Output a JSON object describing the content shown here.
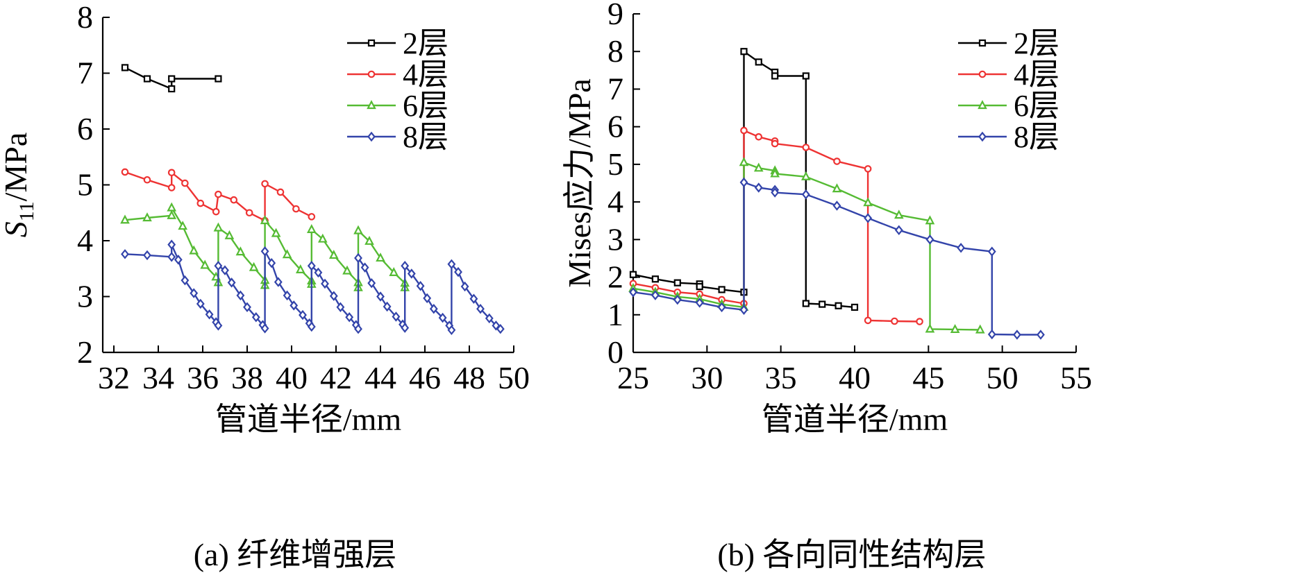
{
  "chart_data": [
    {
      "panel": "a",
      "type": "line",
      "caption": "(a) 纤维增强层",
      "xlabel": "管道半径/mm",
      "ylabel": "S11/MPa",
      "ylabel_main": "S",
      "ylabel_sub": "11",
      "ylabel_unit": "/MPa",
      "xlim": [
        31.5,
        50
      ],
      "ylim": [
        2,
        8
      ],
      "xticks": [
        32,
        34,
        36,
        38,
        40,
        42,
        44,
        46,
        48,
        50
      ],
      "yticks": [
        2,
        3,
        4,
        5,
        6,
        7,
        8
      ],
      "legend_position": "top-right",
      "series": [
        {
          "name": "2层",
          "color": "#000000",
          "marker": "square",
          "points": [
            [
              32.5,
              7.1
            ],
            [
              33.5,
              6.9
            ],
            [
              34.6,
              6.72
            ],
            [
              34.6,
              6.9
            ],
            [
              36.7,
              6.9
            ]
          ]
        },
        {
          "name": "4层",
          "color": "#ee3333",
          "marker": "circle",
          "points": [
            [
              32.5,
              5.23
            ],
            [
              33.5,
              5.09
            ],
            [
              34.6,
              4.95
            ],
            [
              34.6,
              5.22
            ],
            [
              35.2,
              5.03
            ],
            [
              35.9,
              4.67
            ],
            [
              36.6,
              4.52
            ],
            [
              36.7,
              4.83
            ],
            [
              37.4,
              4.73
            ],
            [
              38.1,
              4.5
            ],
            [
              38.8,
              4.36
            ],
            [
              38.8,
              5.02
            ],
            [
              39.5,
              4.87
            ],
            [
              40.2,
              4.57
            ],
            [
              40.9,
              4.43
            ]
          ]
        },
        {
          "name": "6层",
          "color": "#55bb33",
          "marker": "triangle",
          "points": [
            [
              32.5,
              4.37
            ],
            [
              33.5,
              4.41
            ],
            [
              34.6,
              4.45
            ],
            [
              34.6,
              4.59
            ],
            [
              35.1,
              4.26
            ],
            [
              35.6,
              3.82
            ],
            [
              36.1,
              3.56
            ],
            [
              36.6,
              3.35
            ],
            [
              36.7,
              3.25
            ],
            [
              36.7,
              4.23
            ],
            [
              37.2,
              4.09
            ],
            [
              37.7,
              3.8
            ],
            [
              38.3,
              3.52
            ],
            [
              38.8,
              3.29
            ],
            [
              38.8,
              3.2
            ],
            [
              38.8,
              4.36
            ],
            [
              39.3,
              4.13
            ],
            [
              39.8,
              3.75
            ],
            [
              40.4,
              3.48
            ],
            [
              40.9,
              3.28
            ],
            [
              40.9,
              3.22
            ],
            [
              40.9,
              4.2
            ],
            [
              41.4,
              4.03
            ],
            [
              41.9,
              3.74
            ],
            [
              42.5,
              3.46
            ],
            [
              43.0,
              3.25
            ],
            [
              43.0,
              3.16
            ],
            [
              43.0,
              4.18
            ],
            [
              43.5,
              3.99
            ],
            [
              44.0,
              3.69
            ],
            [
              44.6,
              3.43
            ],
            [
              45.1,
              3.24
            ],
            [
              45.1,
              3.16
            ]
          ]
        },
        {
          "name": "8层",
          "color": "#3344aa",
          "marker": "diamond",
          "points": [
            [
              32.5,
              3.76
            ],
            [
              33.5,
              3.74
            ],
            [
              34.6,
              3.71
            ],
            [
              34.6,
              3.93
            ],
            [
              34.9,
              3.66
            ],
            [
              35.2,
              3.29
            ],
            [
              35.6,
              3.06
            ],
            [
              35.9,
              2.87
            ],
            [
              36.3,
              2.68
            ],
            [
              36.6,
              2.54
            ],
            [
              36.7,
              2.48
            ],
            [
              36.7,
              3.55
            ],
            [
              37.0,
              3.47
            ],
            [
              37.3,
              3.25
            ],
            [
              37.7,
              3.02
            ],
            [
              38.0,
              2.81
            ],
            [
              38.4,
              2.63
            ],
            [
              38.7,
              2.49
            ],
            [
              38.8,
              2.43
            ],
            [
              38.8,
              3.81
            ],
            [
              39.1,
              3.6
            ],
            [
              39.4,
              3.26
            ],
            [
              39.8,
              3.02
            ],
            [
              40.1,
              2.84
            ],
            [
              40.5,
              2.67
            ],
            [
              40.8,
              2.52
            ],
            [
              40.9,
              2.46
            ],
            [
              40.9,
              3.55
            ],
            [
              41.2,
              3.43
            ],
            [
              41.5,
              3.23
            ],
            [
              41.9,
              3.01
            ],
            [
              42.2,
              2.81
            ],
            [
              42.6,
              2.63
            ],
            [
              42.9,
              2.49
            ],
            [
              43.0,
              2.42
            ],
            [
              43.0,
              3.69
            ],
            [
              43.3,
              3.52
            ],
            [
              43.6,
              3.24
            ],
            [
              44.0,
              3.0
            ],
            [
              44.3,
              2.82
            ],
            [
              44.7,
              2.64
            ],
            [
              45.0,
              2.5
            ],
            [
              45.1,
              2.44
            ],
            [
              45.1,
              3.55
            ],
            [
              45.4,
              3.41
            ],
            [
              45.8,
              3.19
            ],
            [
              46.1,
              2.97
            ],
            [
              46.4,
              2.78
            ],
            [
              46.8,
              2.62
            ],
            [
              47.1,
              2.48
            ],
            [
              47.2,
              2.4
            ],
            [
              47.2,
              3.58
            ],
            [
              47.5,
              3.44
            ],
            [
              47.8,
              3.18
            ],
            [
              48.2,
              2.96
            ],
            [
              48.5,
              2.78
            ],
            [
              48.9,
              2.61
            ],
            [
              49.2,
              2.48
            ],
            [
              49.4,
              2.42
            ]
          ]
        }
      ]
    },
    {
      "panel": "b",
      "type": "line",
      "caption": "(b) 各向同性结构层",
      "xlabel": "管道半径/mm",
      "ylabel": "Mises应力/MPa",
      "xlim": [
        25,
        55
      ],
      "ylim": [
        0,
        9
      ],
      "xticks": [
        25,
        30,
        35,
        40,
        45,
        50,
        55
      ],
      "yticks": [
        0,
        1,
        2,
        3,
        4,
        5,
        6,
        7,
        8,
        9
      ],
      "legend_position": "top-right",
      "series": [
        {
          "name": "2层",
          "color": "#000000",
          "marker": "square",
          "points": [
            [
              25.0,
              2.07
            ],
            [
              26.5,
              1.95
            ],
            [
              28.0,
              1.85
            ],
            [
              29.5,
              1.82
            ],
            [
              29.5,
              1.75
            ],
            [
              31.0,
              1.67
            ],
            [
              32.5,
              1.6
            ],
            [
              32.5,
              8.0
            ],
            [
              33.5,
              7.72
            ],
            [
              34.6,
              7.45
            ],
            [
              34.6,
              7.35
            ],
            [
              36.7,
              7.35
            ],
            [
              36.7,
              1.3
            ],
            [
              37.8,
              1.28
            ],
            [
              38.9,
              1.24
            ],
            [
              40.0,
              1.2
            ]
          ]
        },
        {
          "name": "4层",
          "color": "#ee3333",
          "marker": "circle",
          "points": [
            [
              25.0,
              1.83
            ],
            [
              26.5,
              1.72
            ],
            [
              28.0,
              1.6
            ],
            [
              29.5,
              1.55
            ],
            [
              31.0,
              1.4
            ],
            [
              32.5,
              1.3
            ],
            [
              32.5,
              5.9
            ],
            [
              33.5,
              5.73
            ],
            [
              34.6,
              5.62
            ],
            [
              34.6,
              5.55
            ],
            [
              36.7,
              5.45
            ],
            [
              38.8,
              5.08
            ],
            [
              40.9,
              4.88
            ],
            [
              40.9,
              0.85
            ],
            [
              42.7,
              0.83
            ],
            [
              44.4,
              0.82
            ]
          ]
        },
        {
          "name": "6层",
          "color": "#55bb33",
          "marker": "triangle",
          "points": [
            [
              25.0,
              1.7
            ],
            [
              26.5,
              1.6
            ],
            [
              28.0,
              1.48
            ],
            [
              29.5,
              1.42
            ],
            [
              31.0,
              1.28
            ],
            [
              32.5,
              1.2
            ],
            [
              32.5,
              5.05
            ],
            [
              33.5,
              4.9
            ],
            [
              34.6,
              4.83
            ],
            [
              34.6,
              4.75
            ],
            [
              36.7,
              4.67
            ],
            [
              38.8,
              4.35
            ],
            [
              40.9,
              3.98
            ],
            [
              43.0,
              3.65
            ],
            [
              45.1,
              3.5
            ],
            [
              45.1,
              0.62
            ],
            [
              46.8,
              0.61
            ],
            [
              48.5,
              0.6
            ]
          ]
        },
        {
          "name": "8层",
          "color": "#3344aa",
          "marker": "diamond",
          "points": [
            [
              25.0,
              1.6
            ],
            [
              26.5,
              1.52
            ],
            [
              28.0,
              1.4
            ],
            [
              29.5,
              1.32
            ],
            [
              31.0,
              1.2
            ],
            [
              32.5,
              1.13
            ],
            [
              32.5,
              4.52
            ],
            [
              33.5,
              4.38
            ],
            [
              34.6,
              4.32
            ],
            [
              34.6,
              4.25
            ],
            [
              36.7,
              4.2
            ],
            [
              38.8,
              3.9
            ],
            [
              40.9,
              3.57
            ],
            [
              43.0,
              3.25
            ],
            [
              45.1,
              3.0
            ],
            [
              47.2,
              2.78
            ],
            [
              49.3,
              2.68
            ],
            [
              49.3,
              0.48
            ],
            [
              51.0,
              0.47
            ],
            [
              52.6,
              0.47
            ]
          ]
        }
      ]
    }
  ]
}
